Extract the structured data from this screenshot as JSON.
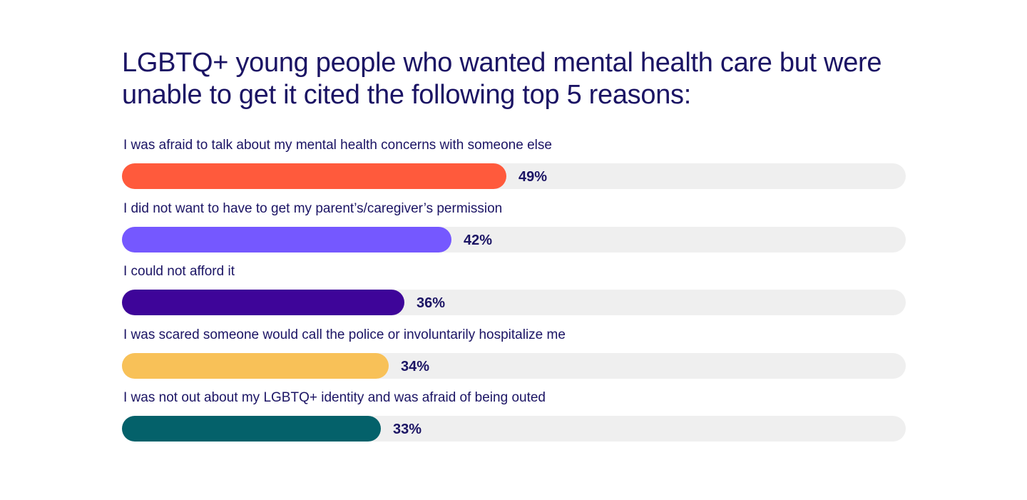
{
  "chart_data": {
    "type": "bar",
    "orientation": "horizontal",
    "title": "LGBTQ+ young people who wanted mental health care but were unable to get it cited the following top 5 reasons:",
    "xlim": [
      0,
      100
    ],
    "unit": "%",
    "categories": [
      "I was afraid to talk about my mental health concerns with someone else",
      "I did not want to have to get my parent’s/caregiver’s permission",
      "I could not afford it",
      "I was scared someone would call the police or involuntarily hospitalize me",
      "I was not out about my LGBTQ+ identity and was afraid of being outed"
    ],
    "values": [
      49,
      42,
      36,
      34,
      33
    ],
    "value_labels": [
      "49%",
      "42%",
      "36%",
      "34%",
      "33%"
    ],
    "colors": [
      "#ff5a3c",
      "#7558ff",
      "#3e0599",
      "#f8c158",
      "#04616a"
    ],
    "track_color": "#efefef",
    "text_color": "#1b1464",
    "grid": false,
    "legend": "none"
  }
}
